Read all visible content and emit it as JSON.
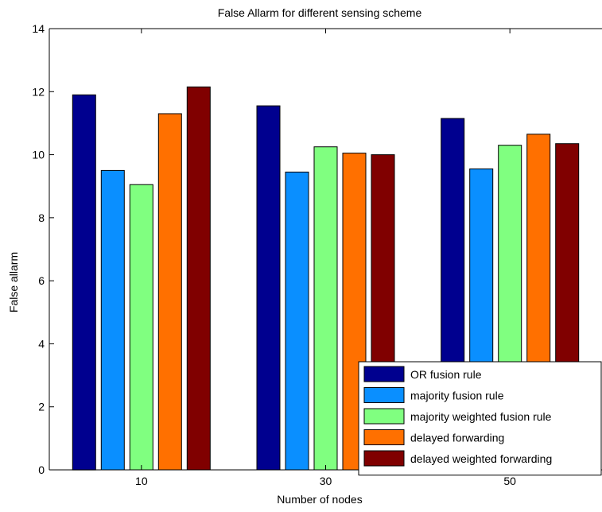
{
  "chart_data": {
    "type": "bar",
    "title": "False Allarm for different sensing scheme",
    "xlabel": "Number of nodes",
    "ylabel": "False allarm",
    "categories": [
      "10",
      "30",
      "50"
    ],
    "ylim": [
      0,
      14
    ],
    "yticks": [
      0,
      2,
      4,
      6,
      8,
      10,
      12,
      14
    ],
    "grid": false,
    "legend_position": "bottom-right",
    "series": [
      {
        "name": "OR fusion rule",
        "color": "#00008f",
        "values": [
          11.9,
          11.55,
          11.15
        ]
      },
      {
        "name": "majority fusion rule",
        "color": "#0a8fff",
        "values": [
          9.5,
          9.45,
          9.55
        ]
      },
      {
        "name": "majority weighted fusion rule",
        "color": "#80ff80",
        "values": [
          9.05,
          10.25,
          10.3
        ]
      },
      {
        "name": "delayed forwarding",
        "color": "#ff7000",
        "values": [
          11.3,
          10.05,
          10.65
        ]
      },
      {
        "name": "delayed weighted forwarding",
        "color": "#800000",
        "values": [
          12.15,
          10.0,
          10.35
        ]
      }
    ]
  }
}
